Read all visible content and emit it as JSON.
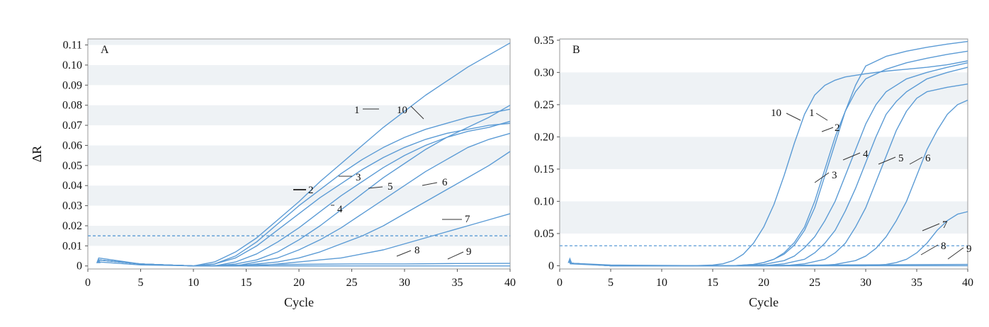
{
  "chart_data": [
    {
      "type": "line",
      "panel_label": "A",
      "xlabel": "Cycle",
      "ylabel": "ΔR",
      "xlim": [
        0,
        40
      ],
      "ylim": [
        -0.0015,
        0.113
      ],
      "x_ticks": [
        0,
        5,
        10,
        15,
        20,
        25,
        30,
        35,
        40
      ],
      "x_tick_labels": [
        "0",
        "5",
        "10",
        "15",
        "20",
        "25",
        "30",
        "35",
        "40"
      ],
      "y_ticks": [
        0,
        0.01,
        0.02,
        0.03,
        0.04,
        0.05,
        0.06,
        0.07,
        0.08,
        0.09,
        0.1,
        0.11
      ],
      "y_tick_labels": [
        "0",
        "0.01",
        "0.02",
        "0.03",
        "0.04",
        "0.05",
        "0.06",
        "0.07",
        "0.08",
        "0.09",
        "0.10",
        "0.11"
      ],
      "threshold": 0.015,
      "line_color": "#5b9bd5",
      "grid_band_color": "#eef2f5",
      "series": [
        {
          "name": "1",
          "x": [
            1,
            5,
            10,
            12,
            14,
            16,
            18,
            20,
            22,
            24,
            26,
            28,
            30,
            32,
            34,
            36,
            38,
            40
          ],
          "y": [
            0.003,
            0.001,
            0,
            0.002,
            0.007,
            0.014,
            0.023,
            0.032,
            0.042,
            0.051,
            0.06,
            0.069,
            0.077,
            0.085,
            0.092,
            0.099,
            0.105,
            0.111
          ]
        },
        {
          "name": "2",
          "x": [
            1,
            5,
            10,
            12,
            14,
            16,
            18,
            20,
            22,
            24,
            26,
            28,
            30,
            32,
            34,
            36,
            38,
            40
          ],
          "y": [
            0.003,
            0.001,
            0,
            0.001,
            0.004,
            0.01,
            0.018,
            0.026,
            0.034,
            0.041,
            0.048,
            0.054,
            0.059,
            0.063,
            0.066,
            0.068,
            0.07,
            0.071
          ]
        },
        {
          "name": "3",
          "x": [
            1,
            5,
            10,
            12,
            14,
            16,
            18,
            20,
            22,
            24,
            26,
            28,
            30,
            32,
            34,
            36,
            38,
            40
          ],
          "y": [
            0.003,
            0.001,
            0,
            0,
            0.002,
            0.006,
            0.012,
            0.019,
            0.027,
            0.035,
            0.042,
            0.049,
            0.055,
            0.06,
            0.064,
            0.067,
            0.069,
            0.072
          ]
        },
        {
          "name": "4",
          "x": [
            1,
            5,
            10,
            12,
            14,
            16,
            18,
            20,
            22,
            24,
            26,
            28,
            30,
            32,
            34,
            36,
            38,
            40
          ],
          "y": [
            0.003,
            0.001,
            0,
            0,
            0.001,
            0.003,
            0.007,
            0.013,
            0.02,
            0.028,
            0.036,
            0.044,
            0.051,
            0.058,
            0.064,
            0.069,
            0.074,
            0.08
          ]
        },
        {
          "name": "5",
          "x": [
            1,
            5,
            10,
            12,
            14,
            16,
            18,
            20,
            22,
            24,
            26,
            28,
            30,
            32,
            34,
            36,
            38,
            40
          ],
          "y": [
            0.003,
            0.001,
            0,
            0,
            0,
            0.002,
            0.004,
            0.008,
            0.013,
            0.019,
            0.026,
            0.033,
            0.04,
            0.047,
            0.053,
            0.059,
            0.063,
            0.066
          ]
        },
        {
          "name": "6",
          "x": [
            1,
            5,
            10,
            12,
            14,
            16,
            18,
            20,
            22,
            24,
            26,
            28,
            30,
            32,
            34,
            36,
            38,
            40
          ],
          "y": [
            0.003,
            0.001,
            0,
            0,
            0,
            0.001,
            0.002,
            0.004,
            0.007,
            0.011,
            0.015,
            0.02,
            0.026,
            0.032,
            0.038,
            0.044,
            0.05,
            0.057
          ]
        },
        {
          "name": "7",
          "x": [
            1,
            5,
            10,
            12,
            14,
            16,
            18,
            20,
            22,
            24,
            26,
            28,
            30,
            32,
            34,
            36,
            38,
            40
          ],
          "y": [
            0.003,
            0.001,
            0,
            0,
            0,
            0,
            0.001,
            0.002,
            0.003,
            0.004,
            0.006,
            0.008,
            0.011,
            0.014,
            0.017,
            0.02,
            0.023,
            0.026
          ]
        },
        {
          "name": "8",
          "x": [
            1,
            5,
            10,
            15,
            20,
            25,
            30,
            35,
            40
          ],
          "y": [
            0.004,
            0.001,
            0,
            0.0005,
            0.0008,
            0.001,
            0.001,
            0.0012,
            0.0013
          ]
        },
        {
          "name": "9",
          "x": [
            1,
            5,
            10,
            15,
            20,
            25,
            30,
            35,
            40
          ],
          "y": [
            0.002,
            0.0005,
            0,
            0,
            0,
            0,
            0,
            0,
            0
          ]
        },
        {
          "name": "10",
          "x": [
            1,
            5,
            10,
            12,
            14,
            16,
            18,
            20,
            22,
            24,
            26,
            28,
            30,
            32,
            34,
            36,
            38,
            40
          ],
          "y": [
            0.003,
            0.001,
            0,
            0.001,
            0.005,
            0.012,
            0.021,
            0.03,
            0.038,
            0.046,
            0.053,
            0.059,
            0.064,
            0.068,
            0.071,
            0.074,
            0.076,
            0.078
          ]
        }
      ]
    },
    {
      "type": "line",
      "panel_label": "B",
      "xlabel": "Cycle",
      "ylabel": "",
      "xlim": [
        0,
        40
      ],
      "ylim": [
        -0.005,
        0.352
      ],
      "x_ticks": [
        0,
        5,
        10,
        15,
        20,
        25,
        30,
        35,
        40
      ],
      "x_tick_labels": [
        "0",
        "5",
        "10",
        "15",
        "20",
        "25",
        "30",
        "35",
        "40"
      ],
      "y_ticks": [
        0,
        0.05,
        0.1,
        0.15,
        0.2,
        0.25,
        0.3,
        0.35
      ],
      "y_tick_labels": [
        "0",
        "0.05",
        "0.10",
        "0.15",
        "0.20",
        "0.25",
        "0.30",
        "0.35"
      ],
      "threshold": 0.031,
      "line_color": "#5b9bd5",
      "grid_band_color": "#eef2f5",
      "series": [
        {
          "name": "1",
          "x": [
            1,
            5,
            15,
            17,
            19,
            20,
            21,
            22,
            23,
            24,
            25,
            26,
            27,
            28,
            29,
            30,
            32,
            34,
            36,
            38,
            40
          ],
          "y": [
            0.004,
            0,
            0,
            0,
            0.002,
            0.005,
            0.01,
            0.02,
            0.036,
            0.06,
            0.1,
            0.15,
            0.2,
            0.24,
            0.27,
            0.29,
            0.305,
            0.315,
            0.322,
            0.328,
            0.333
          ]
        },
        {
          "name": "2",
          "x": [
            1,
            5,
            15,
            17,
            19,
            20,
            21,
            22,
            23,
            24,
            25,
            26,
            27,
            28,
            29,
            30,
            32,
            34,
            36,
            38,
            40
          ],
          "y": [
            0.004,
            0,
            0,
            0,
            0.002,
            0.005,
            0.01,
            0.018,
            0.032,
            0.055,
            0.09,
            0.14,
            0.19,
            0.24,
            0.28,
            0.31,
            0.325,
            0.333,
            0.339,
            0.344,
            0.348
          ]
        },
        {
          "name": "3",
          "x": [
            1,
            5,
            15,
            18,
            20,
            22,
            23,
            24,
            25,
            26,
            27,
            28,
            29,
            30,
            31,
            32,
            34,
            36,
            38,
            40
          ],
          "y": [
            0.004,
            0,
            0,
            0,
            0.002,
            0.008,
            0.015,
            0.028,
            0.045,
            0.07,
            0.1,
            0.14,
            0.18,
            0.22,
            0.25,
            0.27,
            0.29,
            0.3,
            0.308,
            0.315
          ]
        },
        {
          "name": "4",
          "x": [
            1,
            5,
            15,
            20,
            22,
            24,
            25,
            26,
            27,
            28,
            29,
            30,
            31,
            32,
            33,
            34,
            36,
            38,
            40
          ],
          "y": [
            0.004,
            0,
            0,
            0,
            0.003,
            0.01,
            0.02,
            0.035,
            0.055,
            0.085,
            0.12,
            0.16,
            0.2,
            0.235,
            0.255,
            0.27,
            0.29,
            0.3,
            0.308
          ]
        },
        {
          "name": "5",
          "x": [
            1,
            5,
            15,
            22,
            24,
            26,
            27,
            28,
            29,
            30,
            31,
            32,
            33,
            34,
            35,
            36,
            38,
            40
          ],
          "y": [
            0.004,
            0,
            0,
            0,
            0.003,
            0.01,
            0.02,
            0.035,
            0.06,
            0.09,
            0.13,
            0.17,
            0.21,
            0.24,
            0.26,
            0.27,
            0.277,
            0.282
          ]
        },
        {
          "name": "6",
          "x": [
            1,
            5,
            15,
            25,
            27,
            29,
            30,
            31,
            32,
            33,
            34,
            35,
            36,
            37,
            38,
            39,
            40
          ],
          "y": [
            0.004,
            0,
            0,
            0,
            0.002,
            0.008,
            0.015,
            0.027,
            0.045,
            0.07,
            0.1,
            0.14,
            0.18,
            0.21,
            0.235,
            0.25,
            0.257
          ]
        },
        {
          "name": "7",
          "x": [
            1,
            5,
            15,
            30,
            32,
            33,
            34,
            35,
            36,
            37,
            38,
            39,
            40
          ],
          "y": [
            0.004,
            0,
            0,
            0,
            0.002,
            0.005,
            0.01,
            0.02,
            0.035,
            0.055,
            0.07,
            0.08,
            0.084
          ]
        },
        {
          "name": "8",
          "x": [
            1,
            5,
            15,
            25,
            40
          ],
          "y": [
            0.004,
            0.001,
            0,
            0.001,
            0.002
          ]
        },
        {
          "name": "9",
          "x": [
            1,
            5,
            15,
            25,
            40
          ],
          "y": [
            0.003,
            0,
            0,
            0,
            0
          ]
        },
        {
          "name": "10",
          "x": [
            1,
            5,
            13,
            15,
            16,
            17,
            18,
            19,
            20,
            21,
            22,
            23,
            24,
            25,
            26,
            27,
            28,
            30,
            32,
            34,
            36,
            38,
            40
          ],
          "y": [
            0.004,
            0,
            0,
            0.001,
            0.003,
            0.008,
            0.018,
            0.035,
            0.06,
            0.095,
            0.14,
            0.19,
            0.235,
            0.265,
            0.28,
            0.288,
            0.293,
            0.298,
            0.302,
            0.305,
            0.308,
            0.312,
            0.318
          ]
        }
      ]
    }
  ]
}
